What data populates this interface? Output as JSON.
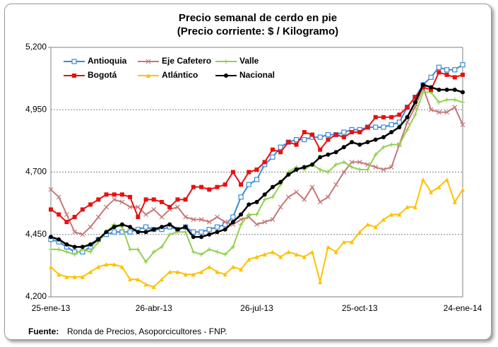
{
  "chart_data": {
    "type": "line",
    "title": "Precio semanal de cerdo en pie",
    "subtitle": "(Precio corriente: $ / Kilogramo)",
    "source_label": "Fuente:",
    "source": "Ronda de Precios, Asoporcicultores - FNP.",
    "categories": [
      "25-ene-13",
      null,
      null,
      null,
      null,
      null,
      null,
      null,
      null,
      null,
      null,
      null,
      null,
      "26-abr-13",
      null,
      null,
      null,
      null,
      null,
      null,
      null,
      null,
      null,
      null,
      null,
      null,
      "26-jul-13",
      null,
      null,
      null,
      null,
      null,
      null,
      null,
      null,
      null,
      null,
      null,
      null,
      "25-oct-13",
      null,
      null,
      null,
      null,
      null,
      null,
      null,
      null,
      null,
      null,
      null,
      null,
      "24-ene-14"
    ],
    "ylim": [
      4200,
      5200
    ],
    "yticks": [
      {
        "value": 4200,
        "label": "4,200"
      },
      {
        "value": 4450,
        "label": "4,450"
      },
      {
        "value": 4700,
        "label": "4,700"
      },
      {
        "value": 4950,
        "label": "4,950"
      },
      {
        "value": 5200,
        "label": "5,200"
      }
    ],
    "grid": true,
    "legend": "top-left",
    "series": [
      {
        "name": "Antioquia",
        "color": "#3a8ad6",
        "marker": "square-open",
        "values": [
          4430,
          4420,
          4400,
          4380,
          4380,
          4400,
          4430,
          4450,
          4460,
          4460,
          4460,
          4470,
          4480,
          4470,
          4470,
          4480,
          4470,
          4480,
          4460,
          4460,
          4470,
          4480,
          4490,
          4520,
          4600,
          4650,
          4670,
          4730,
          4760,
          4800,
          4820,
          4830,
          4830,
          4840,
          4840,
          4850,
          4850,
          4860,
          4870,
          4870,
          4880,
          4880,
          4880,
          4890,
          4900,
          4960,
          5000,
          5050,
          5080,
          5120,
          5110,
          5110,
          5130
        ]
      },
      {
        "name": "Eje Cafetero",
        "color": "#c47878",
        "marker": "x",
        "values": [
          4630,
          4600,
          4530,
          4460,
          4450,
          4480,
          4520,
          4560,
          4590,
          4580,
          4560,
          4560,
          4530,
          4550,
          4520,
          4550,
          4560,
          4520,
          4510,
          4510,
          4500,
          4520,
          4500,
          4490,
          4510,
          4520,
          4490,
          4500,
          4510,
          4560,
          4600,
          4620,
          4590,
          4640,
          4580,
          4600,
          4650,
          4700,
          4740,
          4740,
          4730,
          4720,
          4710,
          4720,
          4810,
          4900,
          4960,
          5040,
          4950,
          4940,
          4940,
          4960,
          4890
        ]
      },
      {
        "name": "Valle",
        "color": "#92d050",
        "marker": "plus",
        "values": [
          4390,
          4390,
          4380,
          4370,
          4390,
          4380,
          4420,
          4460,
          4490,
          4480,
          4390,
          4390,
          4340,
          4380,
          4400,
          4450,
          4460,
          4460,
          4380,
          4370,
          4390,
          4380,
          4370,
          4400,
          4490,
          4530,
          4530,
          4590,
          4600,
          4650,
          4700,
          4720,
          4710,
          4730,
          4710,
          4700,
          4730,
          4740,
          4720,
          4710,
          4710,
          4770,
          4800,
          4810,
          4810,
          4870,
          4930,
          5020,
          5020,
          4980,
          4990,
          4990,
          4980
        ]
      },
      {
        "name": "Bogotá",
        "color": "#e81010",
        "marker": "square",
        "values": [
          4550,
          4530,
          4500,
          4520,
          4550,
          4570,
          4590,
          4610,
          4610,
          4610,
          4600,
          4520,
          4590,
          4590,
          4580,
          4560,
          4590,
          4590,
          4640,
          4640,
          4630,
          4640,
          4650,
          4700,
          4650,
          4700,
          4710,
          4740,
          4790,
          4780,
          4820,
          4810,
          4860,
          4850,
          4790,
          4830,
          4850,
          4840,
          4860,
          4860,
          4880,
          4920,
          4920,
          4920,
          4930,
          4960,
          5000,
          5040,
          5030,
          5100,
          5090,
          5080,
          5090
        ]
      },
      {
        "name": "Atlántico",
        "color": "#ffc000",
        "marker": "triangle",
        "values": [
          4320,
          4290,
          4280,
          4280,
          4280,
          4300,
          4320,
          4330,
          4330,
          4320,
          4270,
          4270,
          4250,
          4240,
          4270,
          4300,
          4300,
          4290,
          4290,
          4300,
          4320,
          4300,
          4290,
          4320,
          4310,
          4350,
          4360,
          4370,
          4380,
          4360,
          4380,
          4370,
          4360,
          4380,
          4260,
          4400,
          4380,
          4420,
          4420,
          4460,
          4490,
          4480,
          4510,
          4530,
          4530,
          4560,
          4560,
          4670,
          4620,
          4640,
          4670,
          4580,
          4630
        ]
      },
      {
        "name": "Nacional",
        "color": "#000000",
        "marker": "circle",
        "values": [
          4440,
          4430,
          4410,
          4400,
          4400,
          4410,
          4430,
          4460,
          4480,
          4490,
          4480,
          4460,
          4460,
          4470,
          4480,
          4490,
          4470,
          4480,
          4440,
          4440,
          4450,
          4460,
          4470,
          4500,
          4530,
          4570,
          4580,
          4610,
          4640,
          4660,
          4690,
          4710,
          4720,
          4730,
          4760,
          4770,
          4780,
          4800,
          4820,
          4810,
          4820,
          4830,
          4840,
          4860,
          4880,
          4920,
          4980,
          5050,
          5040,
          5030,
          5030,
          5030,
          5020
        ]
      }
    ]
  }
}
